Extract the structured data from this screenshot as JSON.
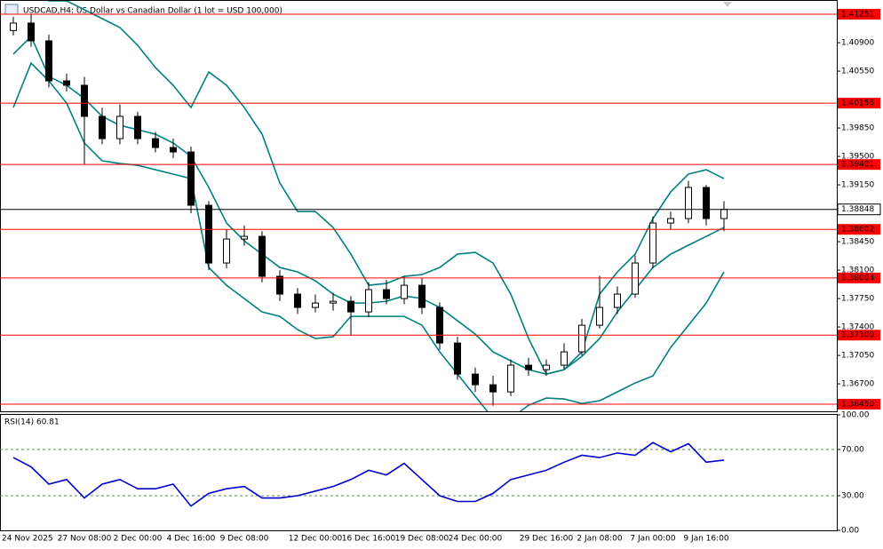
{
  "chart_data": [
    {
      "type": "candlestick",
      "title": "USDCAD,H4: US Dollar vs Canadian Dollar (1 lot = USD 100,000)",
      "categories": [
        "24 Nov 2025",
        null,
        null,
        null,
        "27 Nov 08:00",
        null,
        null,
        "2 Dec 00:00",
        null,
        null,
        "4 Dec 16:00",
        null,
        null,
        "9 Dec 08:00",
        null,
        null,
        null,
        "12 Dec 00:00",
        null,
        null,
        "16 Dec 16:00",
        null,
        null,
        "19 Dec 08:00",
        null,
        null,
        "24 Dec 00:00",
        null,
        null,
        null,
        "29 Dec 16:00",
        null,
        null,
        "2 Jan 08:00",
        null,
        null,
        "7 Jan 00:00",
        null,
        null,
        "9 Jan 16:00",
        null
      ],
      "open": [
        1.4105,
        1.41142,
        1.40923,
        1.4043,
        1.40376,
        1.39993,
        1.39719,
        1.39993,
        1.39719,
        1.3961,
        1.39555,
        1.38899,
        1.38188,
        1.38483,
        1.38516,
        1.38024,
        1.37805,
        1.37641,
        1.37695,
        1.37717,
        1.37586,
        1.3786,
        1.3775,
        1.37914,
        1.37641,
        1.37203,
        1.3682,
        1.36689,
        1.36601,
        1.3693,
        1.36875,
        1.3693,
        1.37094,
        1.37422,
        1.37641,
        1.37805,
        1.38188,
        1.3868,
        1.38735,
        1.39118,
        1.38735
      ],
      "high": [
        1.4122,
        1.4125,
        1.41,
        1.4052,
        1.4048,
        1.401,
        1.4014,
        1.4005,
        1.398,
        1.3972,
        1.3962,
        1.3895,
        1.386,
        1.3865,
        1.3858,
        1.381,
        1.3788,
        1.378,
        1.3782,
        1.3778,
        1.3795,
        1.3798,
        1.3802,
        1.38,
        1.377,
        1.3728,
        1.369,
        1.368,
        1.37,
        1.3702,
        1.37,
        1.372,
        1.375,
        1.3803,
        1.379,
        1.3828,
        1.3876,
        1.3882,
        1.392,
        1.3915,
        1.3895
      ],
      "low": [
        1.4099,
        1.4085,
        1.4035,
        1.403,
        1.394,
        1.3965,
        1.3965,
        1.3965,
        1.3955,
        1.3948,
        1.388,
        1.381,
        1.3812,
        1.384,
        1.3795,
        1.3772,
        1.3756,
        1.3758,
        1.376,
        1.373,
        1.3752,
        1.3768,
        1.3768,
        1.3756,
        1.3712,
        1.3675,
        1.366,
        1.3643,
        1.3655,
        1.368,
        1.368,
        1.3688,
        1.3705,
        1.3738,
        1.3756,
        1.3776,
        1.3812,
        1.386,
        1.3868,
        1.3865,
        1.3858
      ],
      "close": [
        1.41142,
        1.40923,
        1.4043,
        1.40376,
        1.39993,
        1.39719,
        1.39993,
        1.39719,
        1.3961,
        1.39555,
        1.38899,
        1.38188,
        1.38483,
        1.38516,
        1.38024,
        1.37805,
        1.37641,
        1.37695,
        1.37717,
        1.37586,
        1.3786,
        1.3775,
        1.37914,
        1.37641,
        1.37203,
        1.3682,
        1.36689,
        1.36601,
        1.3693,
        1.36875,
        1.3693,
        1.37094,
        1.37422,
        1.37641,
        1.37805,
        1.38188,
        1.3868,
        1.38735,
        1.39118,
        1.38735,
        1.38848
      ],
      "up_color": "#ffffff",
      "down_color": "#000000",
      "overlays": [
        {
          "color": "#008080",
          "values": [
            1.41634,
            1.41524,
            1.41415,
            1.41415,
            1.41306,
            1.41196,
            1.41087,
            1.40868,
            1.40594,
            1.40376,
            1.40102,
            1.4054,
            1.40376,
            1.40102,
            1.39774,
            1.39172,
            1.38822,
            1.38822,
            1.38625,
            1.38297,
            1.37914,
            1.37936,
            1.38024,
            1.38045,
            1.38133,
            1.38297,
            1.38319,
            1.38188,
            1.37805,
            1.37258,
            1.3682,
            1.36875,
            1.37094,
            1.37805,
            1.38078,
            1.38297,
            1.38735,
            1.39063,
            1.39282,
            1.39336,
            1.39227
          ]
        },
        {
          "color": "#008080",
          "values": [
            1.40759,
            1.40977,
            1.40485,
            1.40376,
            1.40212,
            1.39993,
            1.39883,
            1.39829,
            1.39774,
            1.39665,
            1.39501,
            1.39118,
            1.3868,
            1.38461,
            1.38297,
            1.38133,
            1.38078,
            1.37969,
            1.37805,
            1.37695,
            1.37695,
            1.37717,
            1.37783,
            1.3775,
            1.37641,
            1.37477,
            1.37313,
            1.37094,
            1.36984,
            1.36875,
            1.3682,
            1.36875,
            1.37039,
            1.37258,
            1.37586,
            1.3786,
            1.38133,
            1.38297,
            1.38407,
            1.38516,
            1.38625
          ]
        },
        {
          "color": "#008080",
          "values": [
            1.40102,
            1.40649,
            1.4043,
            1.40157,
            1.39665,
            1.39446,
            1.39413,
            1.39391,
            1.39336,
            1.39282,
            1.39227,
            1.38133,
            1.37914,
            1.3775,
            1.37586,
            1.37531,
            1.37367,
            1.37258,
            1.3728,
            1.37531,
            1.37531,
            1.37531,
            1.37531,
            1.37422,
            1.37094,
            1.3682,
            1.36547,
            1.36273,
            1.36273,
            1.36437,
            1.36525,
            1.36514,
            1.36459,
            1.36492,
            1.36601,
            1.36711,
            1.36798,
            1.37148,
            1.37422,
            1.37695,
            1.38078
          ]
        }
      ],
      "ylim": [
        1.36362,
        1.41415
      ],
      "yticks": [
        {
          "value": 1.409,
          "label": "1.40900"
        },
        {
          "value": 1.4055,
          "label": "1.40550"
        },
        {
          "value": 1.3985,
          "label": "1.39850"
        },
        {
          "value": 1.395,
          "label": "1.39500"
        },
        {
          "value": 1.3915,
          "label": "1.39150"
        },
        {
          "value": 1.3845,
          "label": "1.38450"
        },
        {
          "value": 1.381,
          "label": "1.38100"
        },
        {
          "value": 1.3775,
          "label": "1.37750"
        },
        {
          "value": 1.374,
          "label": "1.37400"
        },
        {
          "value": 1.3705,
          "label": "1.37050"
        },
        {
          "value": 1.367,
          "label": "1.36700"
        }
      ],
      "levels": [
        {
          "value": 1.41251,
          "label": "1.41251"
        },
        {
          "value": 1.40156,
          "label": "1.40156"
        },
        {
          "value": 1.39401,
          "label": "1.39401"
        },
        {
          "value": 1.38602,
          "label": "1.38602"
        },
        {
          "value": 1.38004,
          "label": "1.38004"
        },
        {
          "value": 1.373,
          "label": "1.37300"
        },
        {
          "value": 1.3645,
          "label": "1.36450"
        }
      ],
      "level_color": "#ff0000",
      "current_price": {
        "value": 1.38848,
        "label": "1.38848"
      }
    },
    {
      "type": "line",
      "title": "RSI(14) 60.81",
      "color": "#0000cd",
      "values": [
        63,
        55,
        40,
        44,
        28,
        40,
        44,
        36,
        36,
        40,
        21,
        32,
        36,
        38,
        28,
        28,
        30,
        34,
        38,
        44,
        52,
        48,
        58,
        44,
        30,
        25,
        25,
        32,
        44,
        48,
        52,
        59,
        65,
        63,
        67,
        65,
        76,
        68,
        75,
        59,
        60.81
      ],
      "ylim": [
        0,
        100
      ],
      "yticks": [
        {
          "value": 100,
          "label": "100.00"
        },
        {
          "value": 70,
          "label": "70.00"
        },
        {
          "value": 30,
          "label": "30.00"
        },
        {
          "value": 0,
          "label": "0.00"
        }
      ]
    }
  ]
}
